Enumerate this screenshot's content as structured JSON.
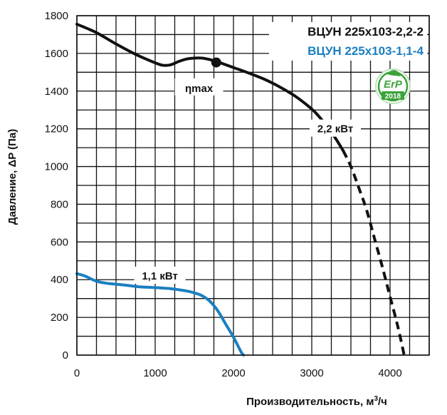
{
  "chart_data": {
    "type": "line",
    "xlabel": "Производительность,",
    "xunit_base": "м",
    "xunit_sup": "3",
    "xunit_tail": "/ч",
    "ylabel": "Давление, ΔP (Па)",
    "xlim": [
      0,
      4500
    ],
    "ylim": [
      0,
      1800
    ],
    "x_ticks": [
      0,
      1000,
      2000,
      3000,
      4000
    ],
    "y_ticks": [
      0,
      200,
      400,
      600,
      800,
      1000,
      1200,
      1400,
      1600,
      1800
    ],
    "x_grid": [
      0,
      250,
      500,
      750,
      1000,
      1250,
      1500,
      1750,
      2000,
      2250,
      2500,
      2750,
      3000,
      3250,
      3500,
      3750,
      4000,
      4250,
      4500
    ],
    "y_grid": [
      0,
      100,
      200,
      300,
      400,
      500,
      600,
      700,
      800,
      900,
      1000,
      1100,
      1200,
      1300,
      1400,
      1500,
      1600,
      1700,
      1800
    ],
    "grid": true,
    "legend_position": "top-right",
    "series": [
      {
        "name": "ВЦУН 225x103-2,2-2",
        "color": "#111111",
        "power_label": "2,2 кВт",
        "power_label_at": [
          3300,
          1200
        ],
        "solid": [
          [
            0,
            1755
          ],
          [
            250,
            1710
          ],
          [
            500,
            1650
          ],
          [
            750,
            1595
          ],
          [
            1000,
            1550
          ],
          [
            1100,
            1537
          ],
          [
            1200,
            1540
          ],
          [
            1300,
            1557
          ],
          [
            1400,
            1570
          ],
          [
            1500,
            1575
          ],
          [
            1600,
            1575
          ],
          [
            1700,
            1567
          ],
          [
            1800,
            1555
          ],
          [
            1900,
            1540
          ],
          [
            2000,
            1525
          ],
          [
            2200,
            1495
          ],
          [
            2400,
            1462
          ],
          [
            2600,
            1420
          ],
          [
            2800,
            1370
          ],
          [
            3000,
            1305
          ],
          [
            3100,
            1262
          ],
          [
            3200,
            1210
          ],
          [
            3300,
            1152
          ],
          [
            3400,
            1085
          ]
        ],
        "dashed": [
          [
            3400,
            1085
          ],
          [
            3500,
            1000
          ],
          [
            3600,
            888
          ],
          [
            3700,
            770
          ],
          [
            3800,
            620
          ],
          [
            3900,
            470
          ],
          [
            4000,
            310
          ],
          [
            4100,
            150
          ],
          [
            4180,
            0
          ]
        ],
        "marker": {
          "label": "ηmax",
          "point": [
            1780,
            1552
          ],
          "label_at": [
            1560,
            1415
          ]
        }
      },
      {
        "name": "ВЦУН 225x103-1,1-4",
        "color": "#1a7fc1",
        "power_label": "1,1 кВт",
        "power_label_at": [
          1060,
          420
        ],
        "solid": [
          [
            0,
            432
          ],
          [
            100,
            420
          ],
          [
            250,
            392
          ],
          [
            400,
            380
          ],
          [
            600,
            372
          ],
          [
            800,
            362
          ],
          [
            1000,
            358
          ],
          [
            1200,
            352
          ],
          [
            1400,
            340
          ],
          [
            1500,
            330
          ],
          [
            1600,
            315
          ],
          [
            1700,
            285
          ],
          [
            1800,
            235
          ],
          [
            1900,
            165
          ],
          [
            2000,
            95
          ],
          [
            2100,
            15
          ],
          [
            2130,
            0
          ]
        ]
      }
    ]
  },
  "badge": {
    "text": "ErP",
    "year": "2018",
    "color": "#3ba33b"
  }
}
